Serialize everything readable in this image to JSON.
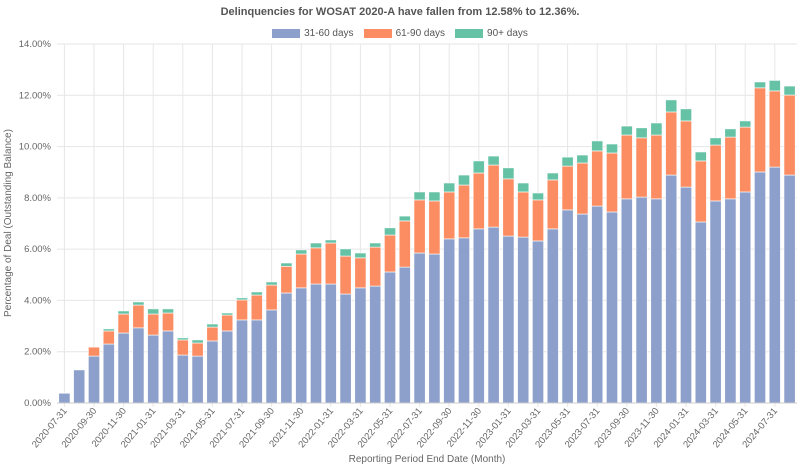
{
  "chart_data": {
    "type": "bar",
    "stacked": true,
    "title": "Delinquencies for WOSAT 2020-A have fallen from 12.58% to 12.36%.",
    "xlabel": "Reporting Period End Date (Month)",
    "ylabel": "Percentage of Deal (Outstanding Balance)",
    "ylim": [
      0,
      14
    ],
    "yticks": [
      "0.00%",
      "2.00%",
      "4.00%",
      "6.00%",
      "8.00%",
      "10.00%",
      "12.00%",
      "14.00%"
    ],
    "grid": true,
    "legend_position": "top",
    "categories": [
      "2020-07-31",
      "2020-08-31",
      "2020-09-30",
      "2020-10-31",
      "2020-11-30",
      "2020-12-31",
      "2021-01-31",
      "2021-02-28",
      "2021-03-31",
      "2021-04-30",
      "2021-05-31",
      "2021-06-30",
      "2021-07-31",
      "2021-08-31",
      "2021-09-30",
      "2021-10-31",
      "2021-11-30",
      "2021-12-31",
      "2022-01-31",
      "2022-02-28",
      "2022-03-31",
      "2022-04-30",
      "2022-05-31",
      "2022-06-30",
      "2022-07-31",
      "2022-08-31",
      "2022-09-30",
      "2022-10-31",
      "2022-11-30",
      "2022-12-31",
      "2023-01-31",
      "2023-02-28",
      "2023-03-31",
      "2023-04-30",
      "2023-05-31",
      "2023-06-30",
      "2023-07-31",
      "2023-08-31",
      "2023-09-30",
      "2023-10-31",
      "2023-11-30",
      "2023-12-31",
      "2024-01-31",
      "2024-02-29",
      "2024-03-31",
      "2024-04-30",
      "2024-05-31",
      "2024-06-30",
      "2024-07-31",
      "2024-08-31"
    ],
    "series": [
      {
        "name": "31-60 days",
        "color": "#8DA0CB",
        "values": [
          0.39,
          1.29,
          1.83,
          2.3,
          2.73,
          2.93,
          2.65,
          2.81,
          1.87,
          1.83,
          2.42,
          2.81,
          3.24,
          3.24,
          3.63,
          4.29,
          4.49,
          4.64,
          4.64,
          4.25,
          4.49,
          4.56,
          5.11,
          5.3,
          5.85,
          5.81,
          6.4,
          6.44,
          6.79,
          6.86,
          6.51,
          6.47,
          6.32,
          6.79,
          7.53,
          7.37,
          7.68,
          7.45,
          7.96,
          8.03,
          7.96,
          8.89,
          8.42,
          7.06,
          7.88,
          7.96,
          8.23,
          9.01,
          9.2,
          8.89
        ]
      },
      {
        "name": "61-90 days",
        "color": "#FC8D62",
        "values": [
          0.01,
          0,
          0.35,
          0.51,
          0.74,
          0.89,
          0.82,
          0.7,
          0.59,
          0.51,
          0.54,
          0.62,
          0.78,
          0.97,
          0.97,
          1.04,
          1.32,
          1.41,
          1.6,
          1.48,
          1.17,
          1.52,
          1.44,
          1.8,
          2.07,
          2.07,
          1.83,
          2.06,
          2.18,
          2.42,
          2.23,
          1.76,
          1.6,
          1.91,
          1.71,
          1.99,
          2.15,
          2.3,
          2.49,
          2.31,
          2.49,
          2.46,
          2.58,
          2.38,
          2.18,
          2.41,
          2.53,
          3.28,
          2.97,
          3.12
        ]
      },
      {
        "name": "90+ days",
        "color": "#66C2A5",
        "values": [
          0,
          0,
          0,
          0.08,
          0.12,
          0.12,
          0.2,
          0.16,
          0.08,
          0.12,
          0.12,
          0.08,
          0.08,
          0.12,
          0.12,
          0.13,
          0.16,
          0.19,
          0.12,
          0.28,
          0.19,
          0.16,
          0.28,
          0.19,
          0.31,
          0.35,
          0.35,
          0.39,
          0.47,
          0.35,
          0.43,
          0.35,
          0.27,
          0.27,
          0.35,
          0.31,
          0.39,
          0.35,
          0.35,
          0.39,
          0.47,
          0.47,
          0.47,
          0.35,
          0.28,
          0.32,
          0.24,
          0.23,
          0.41,
          0.35
        ]
      }
    ]
  }
}
